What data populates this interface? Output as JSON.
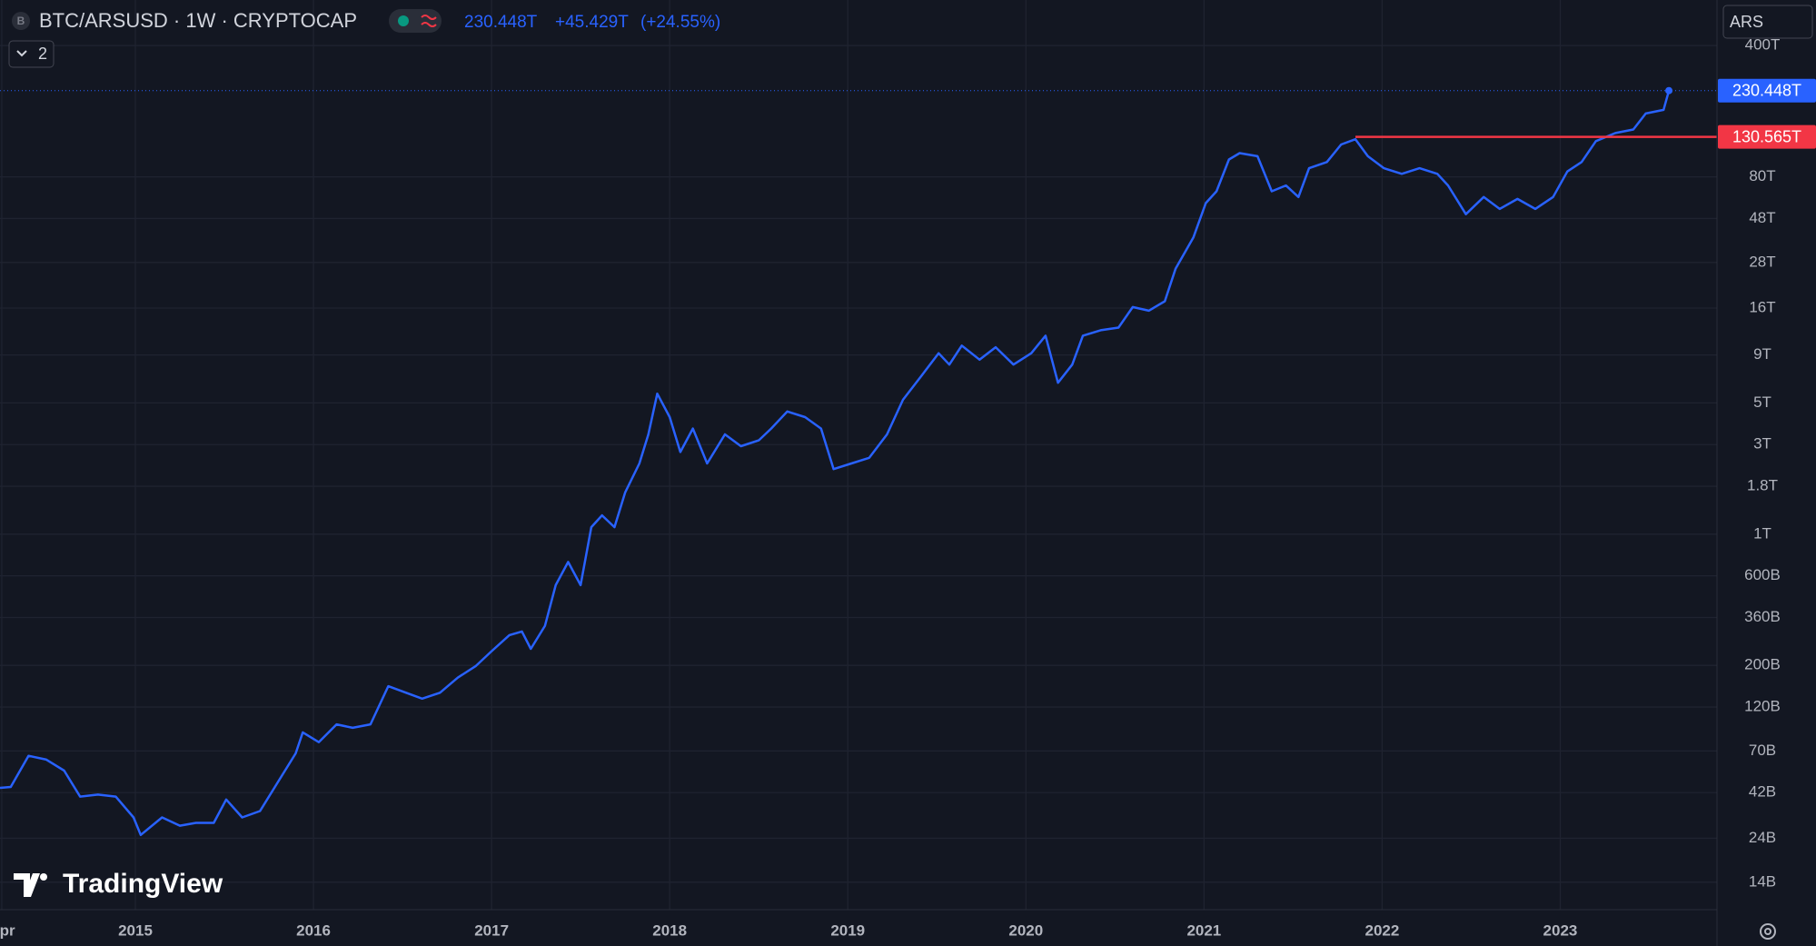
{
  "header": {
    "symbol_icon": "B",
    "title": "BTC/ARSUSD · 1W · CRYPTOCAP",
    "last": "230.448T",
    "change": "+45.429T",
    "change_pct": "(+24.55%)",
    "currency": "ARS",
    "indicators": "2",
    "brand": "TradingView"
  },
  "chart_data": {
    "type": "line",
    "log_scale": true,
    "grid": true,
    "xlim": [
      2014.24,
      2023.88
    ],
    "ylim": [
      10000000000.0,
      700000000000000.0
    ],
    "xticks": [
      {
        "value": 2014.25,
        "label": "Apr"
      },
      2015,
      2016,
      2017,
      2018,
      2019,
      2020,
      2021,
      2022,
      2023
    ],
    "yticks": [
      {
        "value": 400000000000000.0,
        "label": "400T"
      },
      {
        "value": 80000000000000.0,
        "label": "80T"
      },
      {
        "value": 48000000000000.0,
        "label": "48T"
      },
      {
        "value": 28000000000000.0,
        "label": "28T"
      },
      {
        "value": 16000000000000.0,
        "label": "16T"
      },
      {
        "value": 9000000000000.0,
        "label": "9T"
      },
      {
        "value": 5000000000000.0,
        "label": "5T"
      },
      {
        "value": 3000000000000.0,
        "label": "3T"
      },
      {
        "value": 1800000000000.0,
        "label": "1.8T"
      },
      {
        "value": 1000000000000.0,
        "label": "1T"
      },
      {
        "value": 600000000000.0,
        "label": "600B"
      },
      {
        "value": 360000000000.0,
        "label": "360B"
      },
      {
        "value": 200000000000.0,
        "label": "200B"
      },
      {
        "value": 120000000000.0,
        "label": "120B"
      },
      {
        "value": 70000000000.0,
        "label": "70B"
      },
      {
        "value": 42000000000.0,
        "label": "42B"
      },
      {
        "value": 24000000000.0,
        "label": "24B"
      },
      {
        "value": 14000000000.0,
        "label": "14B"
      }
    ],
    "series": [
      {
        "color": "#2962ff",
        "last_label": "230.448T",
        "x": [
          2014.24,
          2014.3,
          2014.4,
          2014.5,
          2014.6,
          2014.69,
          2014.79,
          2014.89,
          2014.99,
          2015.03,
          2015.15,
          2015.25,
          2015.34,
          2015.44,
          2015.51,
          2015.6,
          2015.7,
          2015.8,
          2015.9,
          2015.94,
          2016.03,
          2016.13,
          2016.22,
          2016.32,
          2016.42,
          2016.52,
          2016.61,
          2016.71,
          2016.81,
          2016.91,
          2017.0,
          2017.1,
          2017.17,
          2017.22,
          2017.3,
          2017.36,
          2017.43,
          2017.5,
          2017.56,
          2017.62,
          2017.69,
          2017.75,
          2017.83,
          2017.88,
          2017.93,
          2018.0,
          2018.06,
          2018.13,
          2018.21,
          2018.31,
          2018.4,
          2018.5,
          2018.57,
          2018.66,
          2018.76,
          2018.85,
          2018.92,
          2019.02,
          2019.12,
          2019.22,
          2019.31,
          2019.41,
          2019.51,
          2019.57,
          2019.64,
          2019.74,
          2019.83,
          2019.93,
          2020.03,
          2020.11,
          2020.18,
          2020.26,
          2020.32,
          2020.42,
          2020.52,
          2020.6,
          2020.69,
          2020.78,
          2020.84,
          2020.94,
          2021.01,
          2021.07,
          2021.14,
          2021.2,
          2021.3,
          2021.38,
          2021.46,
          2021.53,
          2021.59,
          2021.69,
          2021.77,
          2021.85,
          2021.92,
          2022.01,
          2022.11,
          2022.21,
          2022.31,
          2022.37,
          2022.47,
          2022.57,
          2022.66,
          2022.76,
          2022.86,
          2022.96,
          2023.04,
          2023.12,
          2023.2,
          2023.31,
          2023.41,
          2023.48,
          2023.58,
          2023.61
        ],
        "values": [
          44500000000.0,
          45000000000.0,
          66000000000.0,
          63000000000.0,
          55000000000.0,
          40000000000.0,
          41000000000.0,
          40000000000.0,
          31000000000.0,
          25000000000.0,
          31000000000.0,
          28000000000.0,
          29000000000.0,
          29000000000.0,
          38600000000.0,
          31000000000.0,
          33500000000.0,
          47800000000.0,
          68000000000.0,
          88000000000.0,
          78000000000.0,
          97000000000.0,
          93000000000.0,
          97000000000.0,
          155000000000.0,
          143000000000.0,
          133000000000.0,
          143000000000.0,
          172000000000.0,
          198000000000.0,
          238000000000.0,
          290000000000.0,
          303000000000.0,
          245000000000.0,
          325000000000.0,
          535000000000.0,
          711000000000.0,
          535000000000.0,
          1090000000000.0,
          1260000000000.0,
          1090000000000.0,
          1670000000000.0,
          2380000000000.0,
          3400000000000.0,
          5600000000000.0,
          4200000000000.0,
          2740000000000.0,
          3650000000000.0,
          2380000000000.0,
          3400000000000.0,
          2940000000000.0,
          3160000000000.0,
          3650000000000.0,
          4500000000000.0,
          4200000000000.0,
          3650000000000.0,
          2220000000000.0,
          2380000000000.0,
          2550000000000.0,
          3400000000000.0,
          5200000000000.0,
          6900000000000.0,
          9200000000000.0,
          8000000000000.0,
          10100000000000.0,
          8500000000000.0,
          9900000000000.0,
          8000000000000.0,
          9200000000000.0,
          11400000000000.0,
          6400000000000.0,
          8000000000000.0,
          11400000000000.0,
          12200000000000.0,
          12600000000000.0,
          16200000000000.0,
          15500000000000.0,
          17400000000000.0,
          25900000000000.0,
          38000000000000.0,
          58000000000000.0,
          67000000000000.0,
          99000000000000.0,
          107000000000000.0,
          103000000000000.0,
          67000000000000.0,
          72000000000000.0,
          62500000000000.0,
          89000000000000.0,
          96000000000000.0,
          119000000000000.0,
          127000000000000.0,
          103000000000000.0,
          89000000000000.0,
          83000000000000.0,
          89000000000000.0,
          83000000000000.0,
          72000000000000.0,
          50600000000000.0,
          62500000000000.0,
          54000000000000.0,
          61000000000000.0,
          54000000000000.0,
          62500000000000.0,
          85500000000000.0,
          96000000000000.0,
          124000000000000.0,
          137000000000000.0,
          143000000000000.0,
          174000000000000.0,
          182000000000000.0,
          230448000000000
        ]
      }
    ],
    "price_line": {
      "value": 130565000000000,
      "label": "130.565T",
      "x": 2021.85,
      "color": "#f23645"
    }
  }
}
